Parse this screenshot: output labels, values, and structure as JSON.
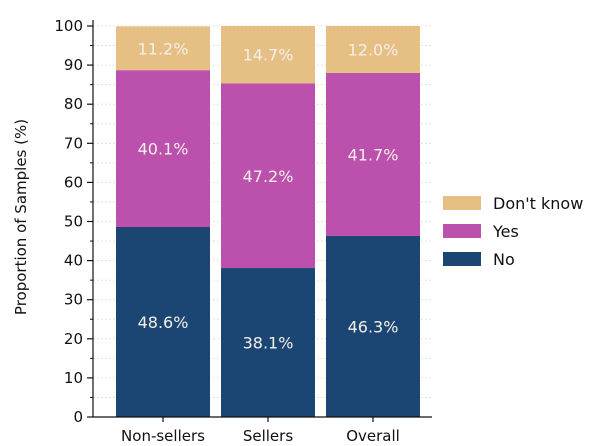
{
  "chart_data": {
    "type": "bar",
    "stacked": true,
    "title": "",
    "xlabel": "",
    "ylabel": "Proportion of Samples (%)",
    "ylim": [
      0,
      100
    ],
    "yticks": [
      0,
      10,
      20,
      30,
      40,
      50,
      60,
      70,
      80,
      90,
      100
    ],
    "grid": true,
    "legend_position": "right",
    "categories": [
      "Non-sellers",
      "Sellers",
      "Overall"
    ],
    "series": [
      {
        "name": "No",
        "color": "#1b4573",
        "values": [
          48.6,
          38.1,
          46.3
        ],
        "labels": [
          "48.6%",
          "38.1%",
          "46.3%"
        ]
      },
      {
        "name": "Yes",
        "color": "#bb50ad",
        "values": [
          40.1,
          47.2,
          41.7
        ],
        "labels": [
          "40.1%",
          "47.2%",
          "41.7%"
        ]
      },
      {
        "name": "Don't know",
        "color": "#e6bf85",
        "values": [
          11.2,
          14.7,
          12.0
        ],
        "labels": [
          "11.2%",
          "14.7%",
          "12.0%"
        ]
      }
    ],
    "legend_order": [
      "Don't know",
      "Yes",
      "No"
    ]
  }
}
